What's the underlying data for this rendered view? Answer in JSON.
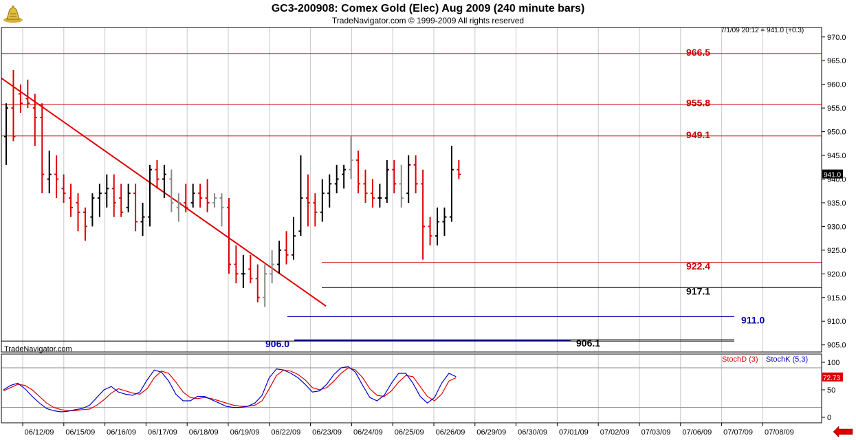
{
  "header": {
    "title": "GC3-200908:  Comex Gold (Elec) Aug 2009  (240 minute bars)",
    "copyright": "TradeNavigator.com © 1999-2009 All rights reserved",
    "quote": "7/1/09 20:12 = 941.0 (+0.3)",
    "watermark": "TradeNavigator.com"
  },
  "colors": {
    "up_bar": "#000000",
    "down_bar": "#dd0000",
    "neutral_bar": "#888888",
    "level_red": "#cc0000",
    "level_blue": "#0000aa",
    "stoch_d": "#dd0000",
    "stoch_k": "#0000cc",
    "grid": "#c8c8c8"
  },
  "chart_data": [
    {
      "type": "ohlc",
      "title": "GC3-200908:  Comex Gold (Elec) Aug 2009  (240 minute bars)",
      "ylim": [
        903.5,
        972
      ],
      "y_ticks": [
        905.0,
        910.0,
        915.0,
        920.0,
        925.0,
        930.0,
        935.0,
        940.0,
        945.0,
        950.0,
        955.0,
        960.0,
        965.0,
        970.0
      ],
      "last_price_label": "941.0",
      "x_labels": [
        "06/12/09",
        "06/15/09",
        "06/16/09",
        "06/17/09",
        "06/18/09",
        "06/19/09",
        "06/22/09",
        "06/23/09",
        "06/24/09",
        "06/25/09",
        "06/26/09",
        "06/29/09",
        "06/30/09",
        "07/01/09",
        "07/02/09",
        "07/03/09",
        "07/06/09",
        "07/07/09",
        "07/08/09"
      ],
      "levels": [
        {
          "label": "966.5",
          "value": 966.5,
          "color": "#cc0000"
        },
        {
          "label": "955.8",
          "value": 955.8,
          "color": "#cc0000"
        },
        {
          "label": "949.1",
          "value": 949.1,
          "color": "#cc0000"
        },
        {
          "label": "922.4",
          "value": 922.4,
          "color": "#cc0000"
        },
        {
          "label": "917.1",
          "value": 917.1,
          "color": "#000000"
        },
        {
          "label": "911.0",
          "value": 911.0,
          "color": "#0000aa"
        },
        {
          "label": "906.0",
          "value": 906.0,
          "color": "#0000aa"
        },
        {
          "label": "906.1",
          "value": 906.1,
          "color": "#000000"
        }
      ],
      "trendline": {
        "from": [
          0,
          961.3
        ],
        "to": [
          78,
          913.2
        ]
      },
      "bars_ohlc": [
        [
          949,
          956,
          943,
          955
        ],
        [
          955,
          963,
          948,
          949
        ],
        [
          958,
          960,
          954,
          956
        ],
        [
          957,
          961,
          955,
          956
        ],
        [
          955,
          958,
          947,
          953
        ],
        [
          953,
          956,
          937,
          941
        ],
        [
          940,
          946,
          937,
          941
        ],
        [
          941,
          945,
          936,
          940
        ],
        [
          938,
          941,
          935,
          937
        ],
        [
          936,
          939,
          932,
          934
        ],
        [
          935,
          937,
          929,
          933
        ],
        [
          933,
          934,
          927,
          930
        ],
        [
          932,
          937,
          930,
          936
        ],
        [
          936,
          939,
          932,
          937
        ],
        [
          937,
          941,
          934,
          938
        ],
        [
          938,
          941,
          932,
          935
        ],
        [
          936,
          939,
          932,
          933
        ],
        [
          934,
          939,
          933,
          937
        ],
        [
          937,
          939,
          929,
          931
        ],
        [
          931,
          935,
          928,
          932
        ],
        [
          932,
          943,
          930,
          942
        ],
        [
          942,
          944,
          938,
          940
        ],
        [
          940,
          943,
          936,
          941
        ],
        [
          940,
          942,
          933,
          935
        ],
        [
          934,
          937,
          931,
          935
        ],
        [
          935,
          939,
          933,
          934
        ],
        [
          935,
          939,
          934,
          937
        ],
        [
          937,
          939,
          934,
          936
        ],
        [
          936,
          940,
          933,
          935
        ],
        [
          935,
          937,
          934,
          936
        ],
        [
          936,
          937,
          930,
          934
        ],
        [
          934,
          936,
          920,
          922
        ],
        [
          922,
          926,
          918,
          920
        ],
        [
          920,
          924,
          917,
          920
        ],
        [
          921,
          924,
          918,
          919
        ],
        [
          919,
          922,
          914,
          915
        ],
        [
          915,
          922,
          913,
          920
        ],
        [
          920,
          925,
          918,
          922
        ],
        [
          922,
          927,
          920,
          925
        ],
        [
          925,
          929,
          922,
          924
        ],
        [
          924,
          932,
          923,
          928
        ],
        [
          929,
          945,
          928,
          936
        ],
        [
          936,
          941,
          930,
          935
        ],
        [
          935,
          937,
          930,
          933
        ],
        [
          933,
          940,
          931,
          937
        ],
        [
          937,
          941,
          934,
          939
        ],
        [
          939,
          943,
          937,
          940
        ],
        [
          941,
          943,
          938,
          942
        ],
        [
          942,
          949,
          940,
          944
        ],
        [
          944,
          946,
          937,
          939
        ],
        [
          939,
          942,
          935,
          937
        ],
        [
          937,
          940,
          934,
          936
        ],
        [
          936,
          939,
          934,
          936
        ],
        [
          936,
          944,
          935,
          942
        ],
        [
          942,
          944,
          937,
          939
        ],
        [
          939,
          943,
          934,
          936
        ],
        [
          937,
          945,
          935,
          943
        ],
        [
          943,
          945,
          937,
          939
        ],
        [
          939,
          942,
          923,
          930
        ],
        [
          930,
          932,
          926,
          928
        ],
        [
          928,
          934,
          926,
          931
        ],
        [
          931,
          934,
          928,
          932
        ],
        [
          932,
          947,
          931,
          942
        ],
        [
          942,
          944,
          940,
          941
        ]
      ]
    },
    {
      "type": "line",
      "title": "Stochastic",
      "ylim": [
        -10,
        115
      ],
      "y_ticks": [
        0,
        50,
        100
      ],
      "overbought": 90,
      "oversold": 18,
      "last_value_label": "72.73",
      "series": [
        {
          "name": "StochD (3)",
          "color": "#dd0000",
          "values": [
            48,
            54,
            60,
            58,
            50,
            38,
            26,
            18,
            14,
            12,
            12,
            14,
            15,
            22,
            32,
            44,
            52,
            48,
            44,
            42,
            52,
            72,
            84,
            80,
            64,
            46,
            36,
            34,
            36,
            34,
            30,
            26,
            22,
            20,
            20,
            22,
            30,
            52,
            76,
            86,
            84,
            78,
            68,
            54,
            50,
            54,
            66,
            80,
            90,
            86,
            72,
            52,
            40,
            38,
            48,
            64,
            76,
            74,
            56,
            38,
            30,
            42,
            66,
            72
          ]
        },
        {
          "name": "StochK (5,3)",
          "color": "#0000cc",
          "values": [
            50,
            58,
            62,
            52,
            38,
            26,
            16,
            12,
            10,
            11,
            14,
            16,
            22,
            36,
            50,
            56,
            46,
            42,
            40,
            46,
            68,
            86,
            82,
            66,
            42,
            30,
            30,
            38,
            38,
            32,
            26,
            20,
            18,
            18,
            20,
            26,
            40,
            72,
            88,
            86,
            80,
            72,
            60,
            46,
            48,
            60,
            78,
            90,
            92,
            82,
            58,
            36,
            30,
            40,
            62,
            80,
            80,
            62,
            38,
            26,
            36,
            62,
            80,
            74
          ]
        }
      ]
    }
  ]
}
